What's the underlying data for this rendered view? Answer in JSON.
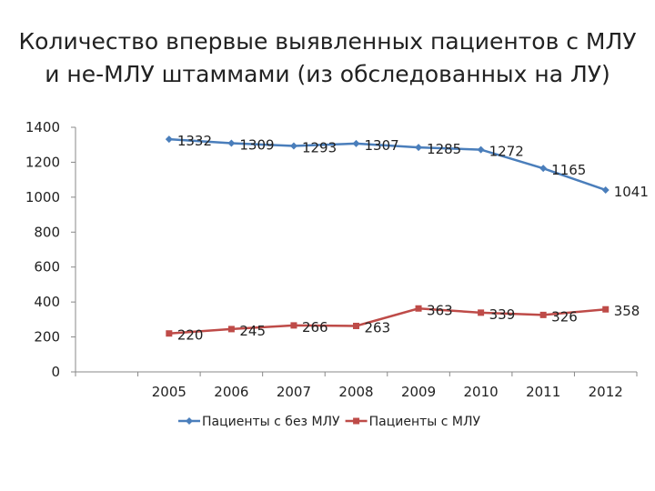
{
  "title_lines": [
    "Количество впервые выявленных пациентов с МЛУ",
    "и не-МЛУ штаммами (из обследованных на ЛУ)"
  ],
  "chart_data": {
    "type": "line",
    "categories": [
      "2005",
      "2006",
      "2007",
      "2008",
      "2009",
      "2010",
      "2011",
      "2012"
    ],
    "series": [
      {
        "name": "Пациенты с без МЛУ",
        "values": [
          1332,
          1309,
          1293,
          1307,
          1285,
          1272,
          1165,
          1041
        ],
        "color": "#4a7ebb",
        "marker": "diamond"
      },
      {
        "name": "Пациенты с МЛУ",
        "values": [
          220,
          245,
          266,
          263,
          363,
          339,
          326,
          358
        ],
        "color": "#be4b48",
        "marker": "square"
      }
    ],
    "ylim": [
      0,
      1400
    ],
    "yticks": [
      0,
      200,
      400,
      600,
      800,
      1000,
      1200,
      1400
    ],
    "xlabel": "",
    "ylabel": "",
    "grid": false,
    "legend": "bottom",
    "data_labels": true
  }
}
